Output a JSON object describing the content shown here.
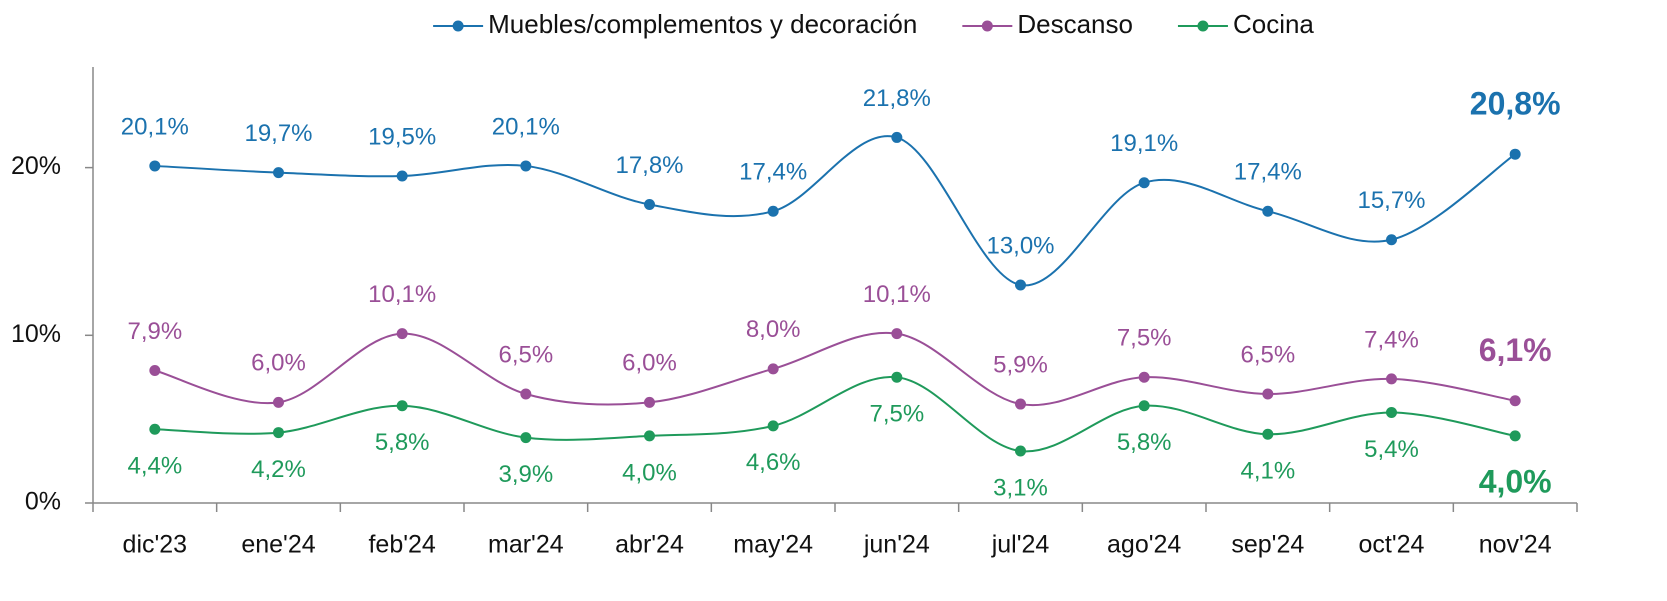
{
  "chart_data": {
    "type": "line",
    "categories": [
      "dic'23",
      "ene'24",
      "feb'24",
      "mar'24",
      "abr'24",
      "may'24",
      "jun'24",
      "jul'24",
      "ago'24",
      "sep'24",
      "oct'24",
      "nov'24"
    ],
    "series": [
      {
        "name": "Muebles/complementos y decoración",
        "color": "#1b72ae",
        "values": [
          20.1,
          19.7,
          19.5,
          20.1,
          17.8,
          17.4,
          21.8,
          13.0,
          19.1,
          17.4,
          15.7,
          20.8
        ],
        "value_labels": [
          "20,1%",
          "19,7%",
          "19,5%",
          "20,1%",
          "17,8%",
          "17,4%",
          "21,8%",
          "13,0%",
          "19,1%",
          "17,4%",
          "15,7%",
          "20,8%"
        ]
      },
      {
        "name": "Descanso",
        "color": "#9a4f97",
        "values": [
          7.9,
          6.0,
          10.1,
          6.5,
          6.0,
          8.0,
          10.1,
          5.9,
          7.5,
          6.5,
          7.4,
          6.1
        ],
        "value_labels": [
          "7,9%",
          "6,0%",
          "10,1%",
          "6,5%",
          "6,0%",
          "8,0%",
          "10,1%",
          "5,9%",
          "7,5%",
          "6,5%",
          "7,4%",
          "6,1%"
        ]
      },
      {
        "name": "Cocina",
        "color": "#1f9a5b",
        "values": [
          4.4,
          4.2,
          5.8,
          3.9,
          4.0,
          4.6,
          7.5,
          3.1,
          5.8,
          4.1,
          5.4,
          4.0
        ],
        "value_labels": [
          "4,4%",
          "4,2%",
          "5,8%",
          "3,9%",
          "4,0%",
          "4,6%",
          "7,5%",
          "3,1%",
          "5,8%",
          "4,1%",
          "5,4%",
          "4,0%"
        ]
      }
    ],
    "ylim": [
      0,
      26
    ],
    "yticks": [
      {
        "value": 0,
        "label": "0%"
      },
      {
        "value": 10,
        "label": "10%"
      },
      {
        "value": 20,
        "label": "20%"
      }
    ],
    "grid": false
  }
}
